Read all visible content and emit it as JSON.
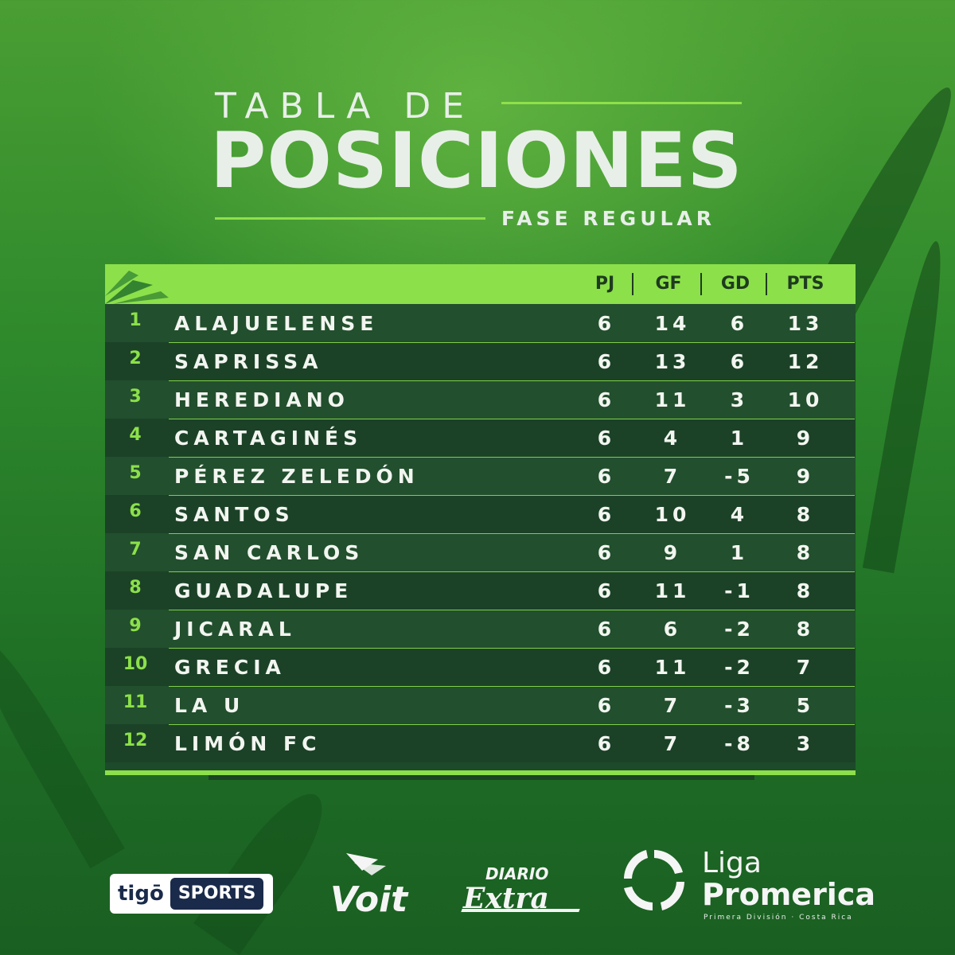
{
  "title": {
    "line1": "TABLA DE",
    "line2": "POSICIONES",
    "subtitle": "FASE REGULAR"
  },
  "table": {
    "headers": [
      "PJ",
      "GF",
      "GD",
      "PTS"
    ],
    "rows": [
      {
        "pos": "1",
        "team": "ALAJUELENSE",
        "pj": "6",
        "gf": "14",
        "gd": "6",
        "pts": "13"
      },
      {
        "pos": "2",
        "team": "SAPRISSA",
        "pj": "6",
        "gf": "13",
        "gd": "6",
        "pts": "12"
      },
      {
        "pos": "3",
        "team": "HEREDIANO",
        "pj": "6",
        "gf": "11",
        "gd": "3",
        "pts": "10"
      },
      {
        "pos": "4",
        "team": "CARTAGINÉS",
        "pj": "6",
        "gf": "4",
        "gd": "1",
        "pts": "9"
      },
      {
        "pos": "5",
        "team": "PÉREZ ZELEDÓN",
        "pj": "6",
        "gf": "7",
        "gd": "-5",
        "pts": "9"
      },
      {
        "pos": "6",
        "team": "SANTOS",
        "pj": "6",
        "gf": "10",
        "gd": "4",
        "pts": "8"
      },
      {
        "pos": "7",
        "team": "SAN CARLOS",
        "pj": "6",
        "gf": "9",
        "gd": "1",
        "pts": "8"
      },
      {
        "pos": "8",
        "team": "GUADALUPE",
        "pj": "6",
        "gf": "11",
        "gd": "-1",
        "pts": "8"
      },
      {
        "pos": "9",
        "team": "JICARAL",
        "pj": "6",
        "gf": "6",
        "gd": "-2",
        "pts": "8"
      },
      {
        "pos": "10",
        "team": "GRECIA",
        "pj": "6",
        "gf": "11",
        "gd": "-2",
        "pts": "7"
      },
      {
        "pos": "11",
        "team": "LA U",
        "pj": "6",
        "gf": "7",
        "gd": "-3",
        "pts": "5"
      },
      {
        "pos": "12",
        "team": "LIMÓN FC",
        "pj": "6",
        "gf": "7",
        "gd": "-8",
        "pts": "3"
      }
    ]
  },
  "sponsors": {
    "tigo_left": "tigō",
    "tigo_right": "SPORTS",
    "voit": "Voit",
    "diario_top": "DIARIO",
    "diario_main": "Extra",
    "liga_line1": "Liga",
    "liga_line2": "Promerica",
    "liga_line3": "Primera División · Costa Rica"
  },
  "colors": {
    "accent": "#8ce04a",
    "row_dark": "#1b4227",
    "row_light": "#224f2d"
  }
}
